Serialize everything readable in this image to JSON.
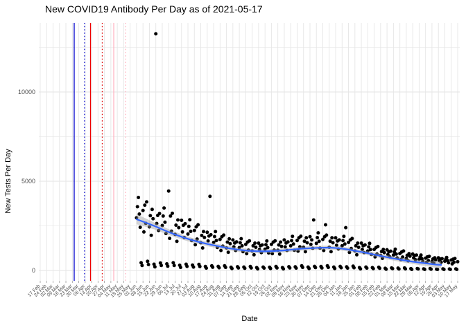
{
  "chart_data": {
    "type": "scatter",
    "title": "New COVID19 Antibody Per Day as of 2021-05-17",
    "xlabel": "Date",
    "ylabel": "New Tests Per Day",
    "grid": true,
    "legend": "none",
    "y_ticks": [
      0,
      5000,
      10000
    ],
    "y_minor_ticks": [
      2500,
      7500,
      12500
    ],
    "ylim": [
      -600,
      13800
    ],
    "x_tick_interval": "weekly",
    "x_tick_labels": [
      "17 Feb",
      "24 Feb",
      "02 Mar",
      "09 Mar",
      "16 Mar",
      "23 Mar",
      "30 Mar",
      "06 Apr",
      "13 Apr",
      "20 Apr",
      "27 Apr",
      "04 May",
      "11 May",
      "18 May",
      "25 May",
      "01 Jun",
      "08 Jun",
      "15 Jun",
      "22 Jun",
      "29 Jun",
      "06 Jul",
      "13 Jul",
      "20 Jul",
      "27 Jul",
      "03 Aug",
      "10 Aug",
      "17 Aug",
      "24 Aug",
      "31 Aug",
      "07 Sep",
      "14 Sep",
      "21 Sep",
      "28 Sep",
      "05 Oct",
      "12 Oct",
      "19 Oct",
      "26 Oct",
      "02 Nov",
      "09 Nov",
      "16 Nov",
      "23 Nov",
      "30 Nov",
      "07 Dec",
      "14 Dec",
      "21 Dec",
      "28 Dec",
      "04 Jan",
      "11 Jan",
      "18 Jan",
      "25 Jan",
      "01 Feb",
      "08 Feb",
      "15 Feb",
      "22 Feb",
      "01 Mar",
      "08 Mar",
      "15 Mar",
      "22 Mar",
      "29 Mar",
      "05 Apr",
      "12 Apr",
      "19 Apr",
      "26 Apr",
      "03 May",
      "10 May",
      "17 May"
    ],
    "scatter": {
      "color": "#000000",
      "point_radius": 2.5,
      "start_week_index": 15,
      "start_label": "01 Jun",
      "daily_values": [
        2950,
        3570,
        4090,
        3160,
        2420,
        430,
        280,
        3360,
        2160,
        3660,
        2640,
        3840,
        510,
        330,
        2440,
        3070,
        1970,
        3420,
        2900,
        350,
        200,
        13260,
        2630,
        3080,
        2240,
        3190,
        420,
        280,
        2520,
        3050,
        3500,
        2700,
        2070,
        370,
        240,
        4450,
        1800,
        3050,
        2200,
        3200,
        430,
        280,
        2020,
        2540,
        1630,
        2830,
        2400,
        290,
        170,
        2810,
        2160,
        2530,
        1840,
        2620,
        350,
        230,
        2040,
        2470,
        2840,
        2190,
        1680,
        300,
        190,
        2240,
        1440,
        2440,
        1760,
        2560,
        340,
        220,
        1550,
        1960,
        1260,
        2180,
        1850,
        220,
        130,
        2140,
        1650,
        1930,
        4150,
        2000,
        260,
        180,
        1570,
        1900,
        2180,
        1680,
        1290,
        230,
        150,
        1740,
        1120,
        1890,
        1360,
        1980,
        260,
        170,
        1260,
        1590,
        1020,
        1770,
        1500,
        180,
        110,
        1710,
        1320,
        1540,
        1120,
        1600,
        210,
        140,
        1280,
        1550,
        1780,
        1380,
        1050,
        190,
        120,
        1460,
        940,
        1590,
        1140,
        1660,
        220,
        140,
        1090,
        1380,
        880,
        1530,
        1300,
        160,
        90,
        1530,
        1180,
        1380,
        1000,
        1430,
        190,
        130,
        1190,
        1440,
        1650,
        1280,
        980,
        180,
        110,
        1460,
        940,
        1590,
        1140,
        1660,
        220,
        140,
        1130,
        1430,
        920,
        1590,
        1350,
        160,
        90,
        1710,
        1320,
        1540,
        1120,
        1600,
        210,
        140,
        1380,
        1670,
        1910,
        1480,
        1130,
        200,
        130,
        1680,
        1080,
        1830,
        1320,
        1920,
        260,
        170,
        1300,
        1640,
        1050,
        1830,
        1550,
        190,
        110,
        1890,
        1460,
        1710,
        1240,
        2830,
        230,
        160,
        1520,
        1840,
        2110,
        1630,
        1250,
        220,
        140,
        1740,
        1120,
        1890,
        2560,
        1980,
        260,
        170,
        1300,
        1640,
        1050,
        1830,
        1550,
        190,
        110,
        1830,
        1410,
        1650,
        1200,
        1710,
        230,
        150,
        1380,
        1670,
        1910,
        1480,
        2400,
        200,
        130,
        1570,
        1010,
        1710,
        1230,
        1790,
        240,
        150,
        1090,
        1380,
        880,
        1530,
        1300,
        160,
        90,
        1530,
        1180,
        1380,
        1000,
        1430,
        190,
        130,
        1090,
        1320,
        1520,
        1170,
        900,
        160,
        100,
        1180,
        760,
        1280,
        920,
        1340,
        180,
        120,
        840,
        1060,
        680,
        1180,
        1000,
        120,
        70,
        1160,
        890,
        1050,
        760,
        1080,
        140,
        100,
        860,
        1040,
        1190,
        920,
        700,
        130,
        80,
        950,
        610,
        1040,
        750,
        1090,
        140,
        90,
        670,
        850,
        540,
        940,
        800,
        100,
        60,
        920,
        710,
        830,
        600,
        860,
        110,
        80,
        620,
        750,
        860,
        660,
        510,
        90,
        60,
        690,
        450,
        760,
        550,
        790,
        110,
        70,
        500,
        640,
        410,
        710,
        600,
        70,
        60,
        710,
        550,
        640,
        460,
        660,
        90,
        60,
        520,
        630,
        730,
        560,
        430,
        80,
        60,
        580,
        370,
        630,
        460,
        670,
        90,
        60,
        490
      ]
    },
    "smooth": {
      "method": "loess",
      "color": "#3366FF",
      "points": [
        [
          0,
          2870
        ],
        [
          10,
          2680
        ],
        [
          20,
          2480
        ],
        [
          30,
          2260
        ],
        [
          40,
          2050
        ],
        [
          50,
          1870
        ],
        [
          60,
          1700
        ],
        [
          70,
          1570
        ],
        [
          80,
          1450
        ],
        [
          90,
          1350
        ],
        [
          100,
          1250
        ],
        [
          110,
          1170
        ],
        [
          120,
          1110
        ],
        [
          130,
          1080
        ],
        [
          140,
          1070
        ],
        [
          150,
          1090
        ],
        [
          160,
          1120
        ],
        [
          170,
          1170
        ],
        [
          180,
          1220
        ],
        [
          190,
          1250
        ],
        [
          200,
          1270
        ],
        [
          210,
          1280
        ],
        [
          220,
          1250
        ],
        [
          230,
          1180
        ],
        [
          240,
          1080
        ],
        [
          250,
          990
        ],
        [
          260,
          880
        ],
        [
          270,
          770
        ],
        [
          280,
          670
        ],
        [
          290,
          580
        ],
        [
          300,
          500
        ],
        [
          310,
          430
        ],
        [
          320,
          370
        ],
        [
          326,
          330
        ],
        [
          332,
          310
        ]
      ]
    },
    "ribbon": {
      "color": "rgba(160,160,160,0.45)",
      "halfwidths": [
        [
          0,
          280
        ],
        [
          20,
          190
        ],
        [
          40,
          150
        ],
        [
          60,
          130
        ],
        [
          80,
          120
        ],
        [
          120,
          110
        ],
        [
          160,
          110
        ],
        [
          200,
          110
        ],
        [
          240,
          110
        ],
        [
          280,
          120
        ],
        [
          300,
          130
        ],
        [
          320,
          160
        ],
        [
          332,
          210
        ]
      ]
    },
    "vlines": [
      {
        "week": 5.29,
        "color": "#0000CC",
        "dash": "solid"
      },
      {
        "week": 6.91,
        "color": "#0000CC",
        "dash": "dotted"
      },
      {
        "week": 7.83,
        "color": "#EE0000",
        "dash": "solid"
      },
      {
        "week": 9.66,
        "color": "#DD0000",
        "dash": "dotted"
      },
      {
        "week": 11.45,
        "color": "#FFB3C1",
        "dash": "solid"
      },
      {
        "week": 13.28,
        "color": "#FFB3C1",
        "dash": "dotted"
      }
    ],
    "colors": {
      "grid_major": "#e3e3e3",
      "grid_minor": "#f0f0f0",
      "tick_label": "#4d4d4d",
      "background": "#ffffff"
    }
  }
}
